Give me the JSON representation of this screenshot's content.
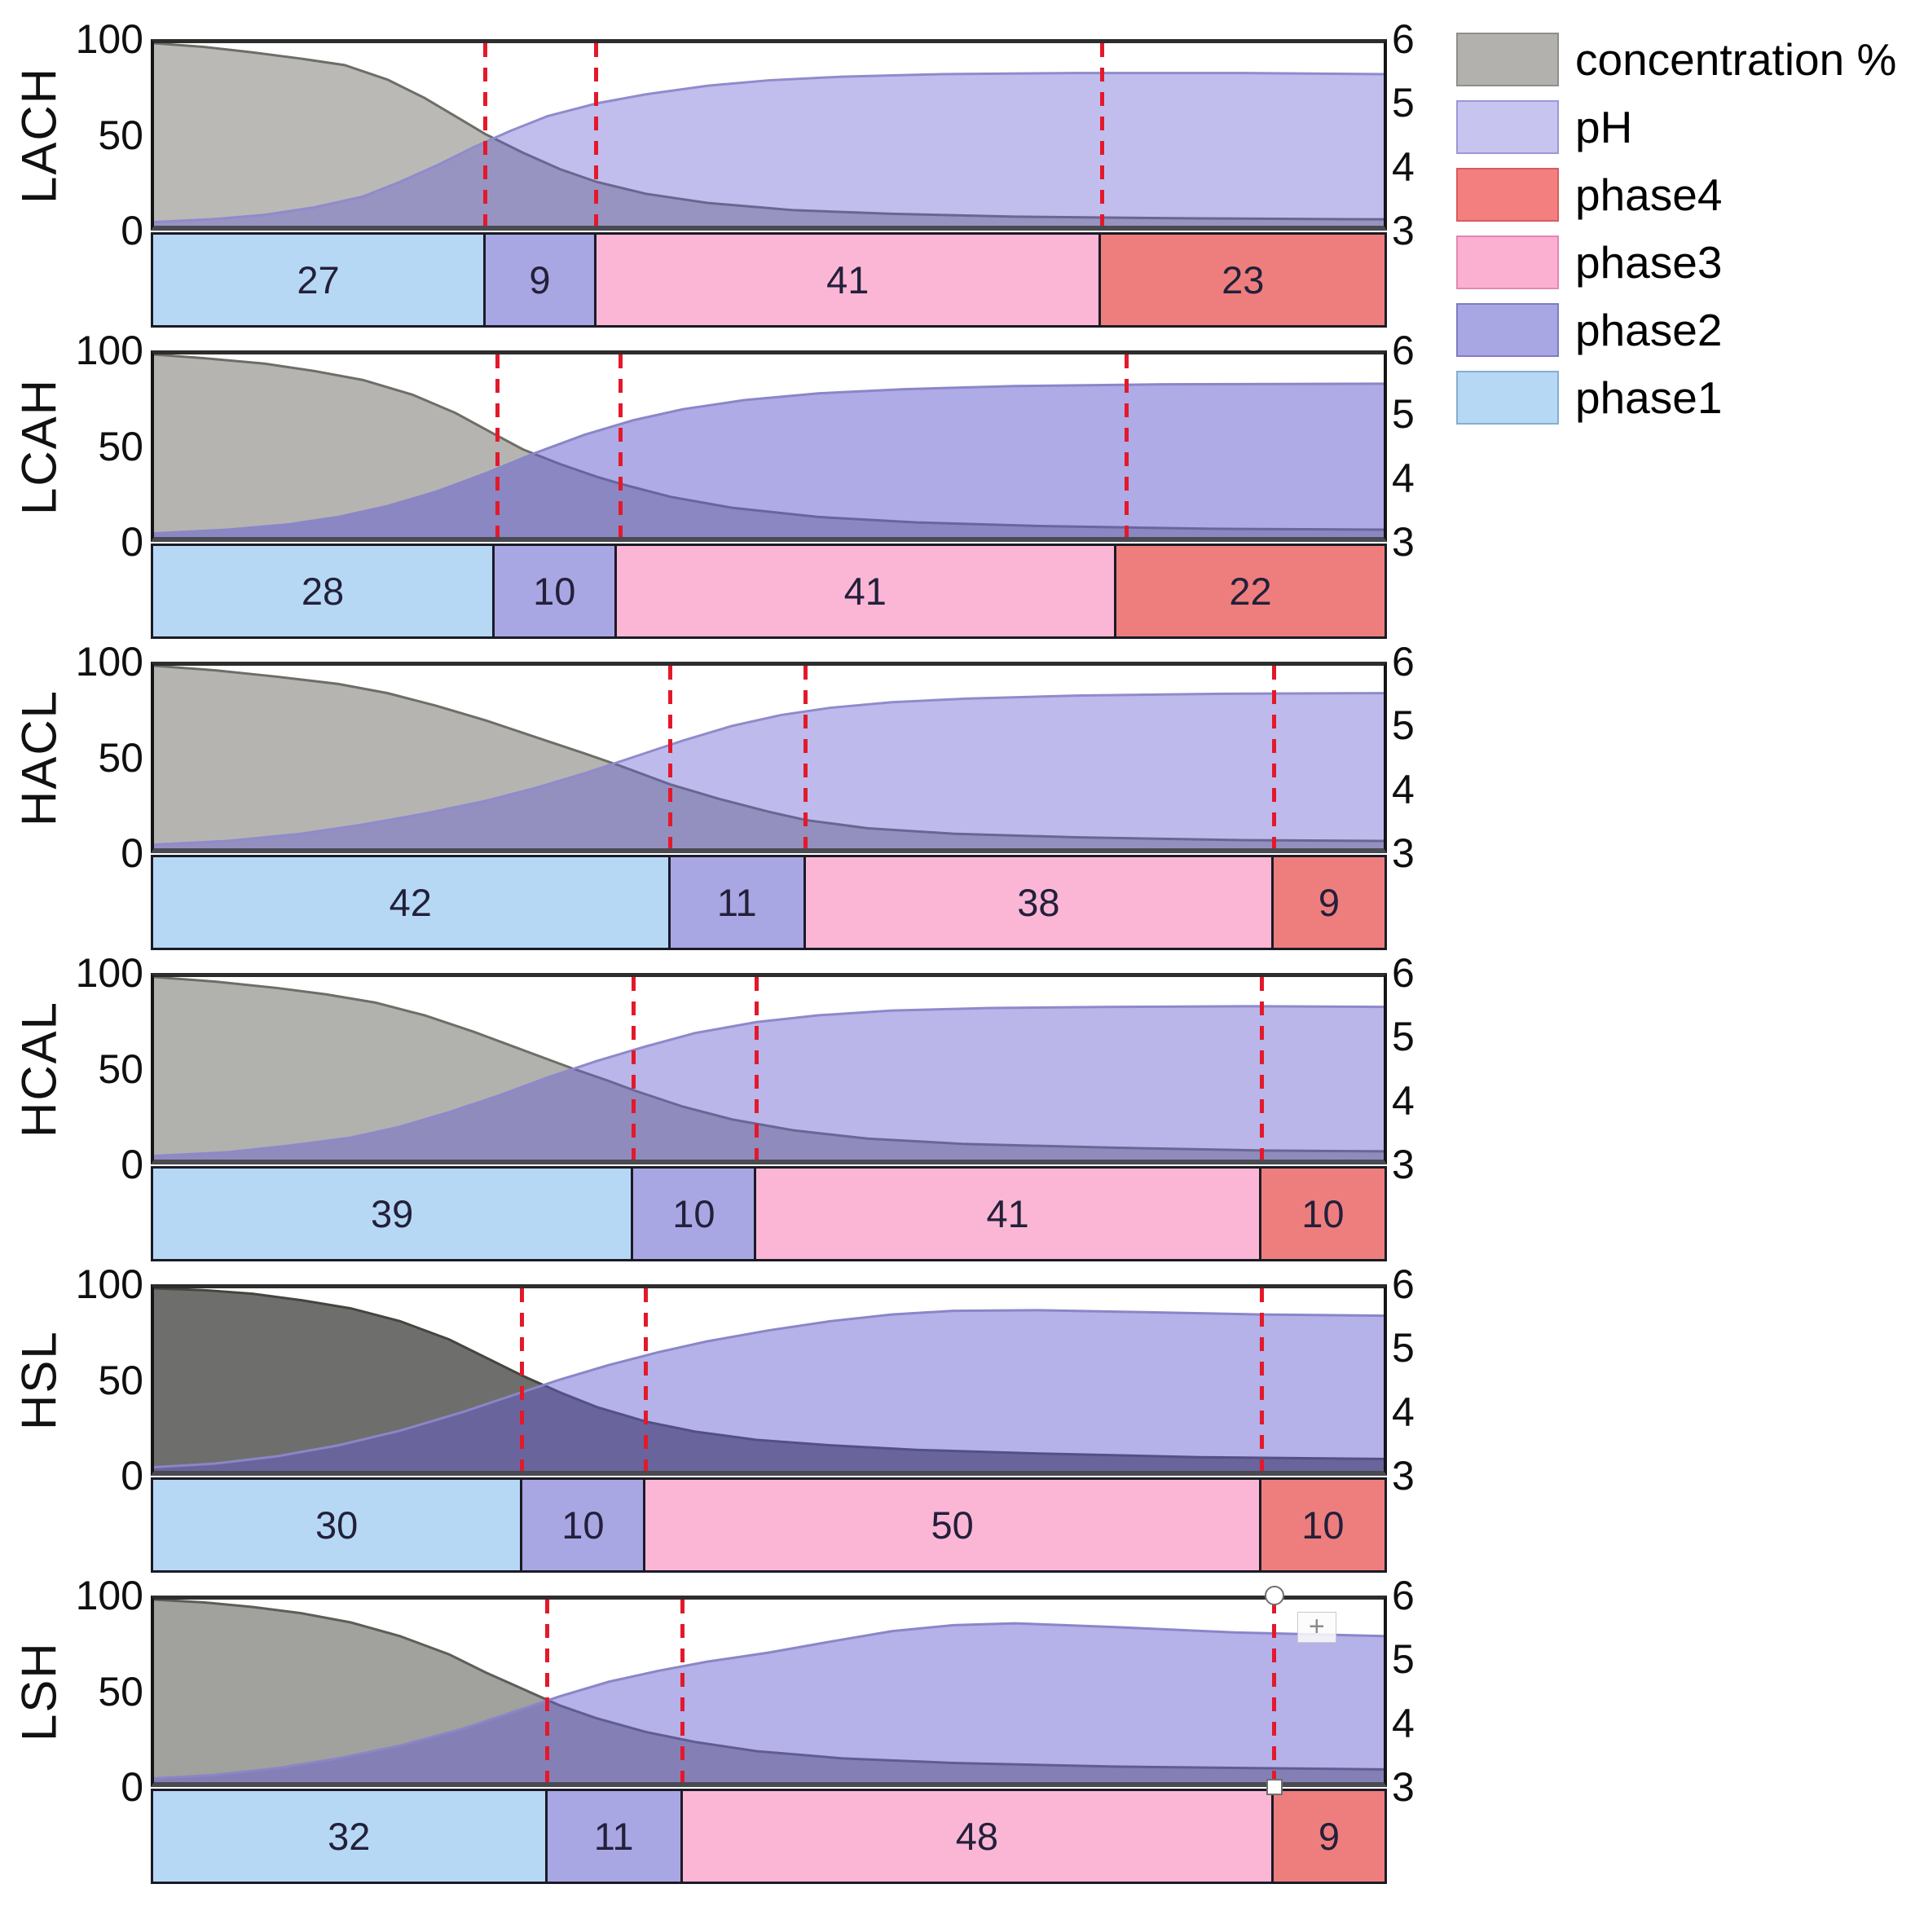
{
  "figure": {
    "background": "#ffffff",
    "description": "Six stacked fermentation panels, each with concentration/pH area chart and phase-duration stacked bar"
  },
  "axes": {
    "left_ticks": [
      "100",
      "50",
      "0"
    ],
    "right_ticks": [
      "6",
      "5",
      "4",
      "3"
    ],
    "left_range": [
      0,
      100
    ],
    "right_range": [
      3,
      6
    ]
  },
  "colors": {
    "phase1": "#b6d8f5",
    "phase2": "#a9a6e4",
    "phase3": "#fbb6d6",
    "phase4": "#ee7e7e",
    "legend_concentration": "#b2b1ad",
    "legend_ph": "#c8c4f0",
    "legend_phase4": "#f3807f",
    "legend_phase3": "#fbb0d2",
    "legend_phase2": "#a9a6e4",
    "legend_phase1": "#b6d8f5",
    "dashed_line": "#e3192b",
    "bar_border": "#1b1b26",
    "axis_border": "#2d2d2d"
  },
  "legend": {
    "items": [
      {
        "label": "concentration %",
        "color": "#b2b1ad",
        "border": "#8f8e8a"
      },
      {
        "label": "pH",
        "color": "#c8c4f0",
        "border": "#9c98d6"
      },
      {
        "label": "phase4",
        "color": "#f3807f",
        "border": "#d85c5e"
      },
      {
        "label": "phase3",
        "color": "#fbb0d2",
        "border": "#e288b4"
      },
      {
        "label": "phase2",
        "color": "#a9a6e4",
        "border": "#7f7cc4"
      },
      {
        "label": "phase1",
        "color": "#b6d8f5",
        "border": "#85aed2"
      }
    ]
  },
  "chart_data": [
    {
      "panel": "LACH",
      "type": "area",
      "series": [
        {
          "name": "concentration %",
          "axis": "left",
          "x": [
            0,
            4,
            8,
            12,
            15.5,
            19,
            22,
            25,
            27,
            30,
            33,
            36,
            40,
            45,
            52,
            60,
            70,
            85,
            100
          ],
          "y": [
            100,
            98,
            95,
            91.5,
            88,
            80,
            70,
            58,
            50,
            40,
            31,
            24,
            17.5,
            12.5,
            8.5,
            6.5,
            5,
            4,
            3.5
          ]
        },
        {
          "name": "pH",
          "axis": "right",
          "x": [
            0,
            5,
            9,
            13,
            17,
            20,
            23,
            26,
            29,
            32,
            36,
            40,
            45,
            50,
            56,
            64,
            75,
            88,
            100
          ],
          "y": [
            3.06,
            3.11,
            3.18,
            3.3,
            3.48,
            3.72,
            3.99,
            4.29,
            4.56,
            4.8,
            5.01,
            5.16,
            5.3,
            5.39,
            5.45,
            5.49,
            5.51,
            5.51,
            5.49
          ]
        }
      ],
      "dashed_lines_x": [
        27,
        36,
        77
      ],
      "phase_bar": {
        "type": "stacked-bar",
        "categories": [
          "phase1",
          "phase2",
          "phase3",
          "phase4"
        ],
        "values": [
          27,
          9,
          41,
          23
        ]
      },
      "style": {
        "conc_fill": "rgba(90,89,82,0.42)",
        "conc_stroke": "#6e6d66",
        "ph_fill": "rgba(101,93,209,0.40)",
        "ph_stroke": "#8f8bcc"
      },
      "selected_line": false
    },
    {
      "panel": "LCAH",
      "type": "area",
      "series": [
        {
          "name": "concentration %",
          "axis": "left",
          "x": [
            0,
            4,
            9,
            13,
            17,
            21,
            24.5,
            27.5,
            30,
            33,
            36,
            38,
            42,
            47,
            54,
            62,
            72,
            86,
            100
          ],
          "y": [
            100,
            98,
            95,
            91,
            86,
            78,
            68,
            57,
            48,
            40,
            33,
            29,
            22,
            16,
            11,
            8,
            6,
            4.5,
            4
          ]
        },
        {
          "name": "pH",
          "axis": "right",
          "x": [
            0,
            6,
            11,
            15,
            19,
            23,
            27,
            31,
            35,
            39,
            43,
            48,
            54,
            61,
            70,
            82,
            100
          ],
          "y": [
            3.06,
            3.12,
            3.21,
            3.33,
            3.51,
            3.75,
            4.05,
            4.38,
            4.68,
            4.92,
            5.1,
            5.25,
            5.36,
            5.43,
            5.48,
            5.51,
            5.52
          ]
        }
      ],
      "dashed_lines_x": [
        28,
        38,
        79
      ],
      "phase_bar": {
        "type": "stacked-bar",
        "categories": [
          "phase1",
          "phase2",
          "phase3",
          "phase4"
        ],
        "values": [
          28,
          10,
          41,
          22
        ]
      },
      "style": {
        "conc_fill": "rgba(90,89,82,0.45)",
        "conc_stroke": "#6e6d66",
        "ph_fill": "rgba(101,93,209,0.52)",
        "ph_stroke": "#8a86c8"
      },
      "selected_line": false
    },
    {
      "panel": "HACL",
      "type": "area",
      "series": [
        {
          "name": "concentration %",
          "axis": "left",
          "x": [
            0,
            5,
            10,
            15,
            19,
            23,
            27,
            31,
            35,
            38,
            42,
            46,
            50,
            53,
            58,
            65,
            75,
            88,
            100
          ],
          "y": [
            100,
            97.5,
            94,
            90,
            85,
            78,
            70,
            61,
            52,
            45,
            35,
            27,
            20,
            15.5,
            11,
            8,
            6,
            4.5,
            4
          ]
        },
        {
          "name": "pH",
          "axis": "right",
          "x": [
            0,
            6,
            12,
            17,
            22,
            27,
            31,
            35,
            39,
            43,
            47,
            51,
            55,
            60,
            66,
            75,
            87,
            100
          ],
          "y": [
            3.06,
            3.12,
            3.24,
            3.39,
            3.57,
            3.78,
            3.99,
            4.23,
            4.5,
            4.77,
            5.01,
            5.19,
            5.31,
            5.4,
            5.46,
            5.51,
            5.54,
            5.55
          ]
        }
      ],
      "dashed_lines_x": [
        42,
        53,
        91
      ],
      "phase_bar": {
        "type": "stacked-bar",
        "categories": [
          "phase1",
          "phase2",
          "phase3",
          "phase4"
        ],
        "values": [
          42,
          11,
          38,
          9
        ]
      },
      "style": {
        "conc_fill": "rgba(90,89,82,0.45)",
        "conc_stroke": "#6e6d66",
        "ph_fill": "rgba(101,93,209,0.42)",
        "ph_stroke": "#8f8bcc"
      },
      "selected_line": false
    },
    {
      "panel": "HCAL",
      "type": "area",
      "series": [
        {
          "name": "concentration %",
          "axis": "left",
          "x": [
            0,
            5,
            10,
            14,
            18,
            22,
            26,
            30,
            34,
            37,
            39,
            43,
            47,
            52,
            58,
            66,
            78,
            90,
            100
          ],
          "y": [
            100,
            97.5,
            94,
            90.5,
            86,
            79,
            70,
            60,
            50,
            43,
            38,
            29,
            22,
            16,
            11.5,
            8.5,
            6.5,
            5,
            4.5
          ]
        },
        {
          "name": "pH",
          "axis": "right",
          "x": [
            0,
            6,
            11,
            16,
            20,
            24,
            28,
            32,
            36,
            40,
            44,
            49,
            54,
            60,
            68,
            78,
            90,
            100
          ],
          "y": [
            3.06,
            3.12,
            3.23,
            3.36,
            3.54,
            3.78,
            4.05,
            4.35,
            4.62,
            4.86,
            5.08,
            5.26,
            5.37,
            5.45,
            5.49,
            5.51,
            5.52,
            5.51
          ]
        }
      ],
      "dashed_lines_x": [
        39,
        49,
        90
      ],
      "phase_bar": {
        "type": "stacked-bar",
        "categories": [
          "phase1",
          "phase2",
          "phase3",
          "phase4"
        ],
        "values": [
          39,
          10,
          41,
          10
        ]
      },
      "style": {
        "conc_fill": "rgba(90,89,82,0.47)",
        "conc_stroke": "#6e6d66",
        "ph_fill": "rgba(101,93,209,0.45)",
        "ph_stroke": "#8d89ca"
      },
      "selected_line": false
    },
    {
      "panel": "HSL",
      "type": "area",
      "series": [
        {
          "name": "concentration %",
          "axis": "left",
          "x": [
            0,
            4,
            8,
            12,
            16,
            20,
            24,
            27,
            30,
            33,
            36,
            40,
            44,
            49,
            55,
            62,
            72,
            85,
            100
          ],
          "y": [
            100,
            99,
            97,
            93.5,
            89,
            82,
            72,
            62,
            52,
            43,
            35,
            27,
            21.5,
            17,
            14,
            11.5,
            9.5,
            7.5,
            6.5
          ]
        },
        {
          "name": "pH",
          "axis": "right",
          "x": [
            0,
            5,
            10,
            15,
            20,
            25,
            29,
            33,
            37,
            41,
            45,
            50,
            55,
            60,
            65,
            72,
            80,
            90,
            100
          ],
          "y": [
            3.06,
            3.12,
            3.24,
            3.42,
            3.66,
            3.96,
            4.23,
            4.5,
            4.74,
            4.95,
            5.13,
            5.31,
            5.46,
            5.57,
            5.63,
            5.64,
            5.61,
            5.57,
            5.55
          ]
        }
      ],
      "dashed_lines_x": [
        30,
        40,
        90
      ],
      "phase_bar": {
        "type": "stacked-bar",
        "categories": [
          "phase1",
          "phase2",
          "phase3",
          "phase4"
        ],
        "values": [
          30,
          10,
          50,
          10
        ]
      },
      "style": {
        "conc_fill": "rgba(42,42,38,0.68)",
        "conc_stroke": "#45453f",
        "ph_fill": "rgba(101,93,209,0.48)",
        "ph_stroke": "#8a86c8"
      },
      "selected_line": false
    },
    {
      "panel": "LSH",
      "type": "area",
      "series": [
        {
          "name": "concentration %",
          "axis": "left",
          "x": [
            0,
            4,
            8,
            12,
            16,
            20,
            24,
            27,
            30,
            33,
            36,
            40,
            44,
            49,
            56,
            65,
            78,
            100
          ],
          "y": [
            100,
            98.5,
            96,
            92.5,
            87.5,
            80,
            70,
            60,
            51,
            42,
            35,
            27.5,
            22,
            17,
            13,
            10.5,
            8.5,
            7
          ]
        },
        {
          "name": "pH",
          "axis": "right",
          "x": [
            0,
            5,
            10,
            15,
            20,
            25,
            29,
            33,
            37,
            41,
            45,
            50,
            55,
            60,
            65,
            70,
            78,
            88,
            100
          ],
          "y": [
            3.06,
            3.12,
            3.23,
            3.39,
            3.6,
            3.87,
            4.14,
            4.41,
            4.65,
            4.83,
            4.98,
            5.13,
            5.31,
            5.48,
            5.58,
            5.61,
            5.55,
            5.46,
            5.4
          ]
        }
      ],
      "dashed_lines_x": [
        32,
        43,
        91
      ],
      "phase_bar": {
        "type": "stacked-bar",
        "categories": [
          "phase1",
          "phase2",
          "phase3",
          "phase4"
        ],
        "values": [
          32,
          11,
          48,
          9
        ]
      },
      "style": {
        "conc_fill": "rgba(75,74,68,0.52)",
        "conc_stroke": "#5e5d57",
        "ph_fill": "rgba(101,93,209,0.48)",
        "ph_stroke": "#8a86c8"
      },
      "selected_line": true
    }
  ],
  "selection_artifacts": {
    "plus_glyph": "+",
    "note": "third dashed line of LSH is selected: circle handle at top, square handle at bottom, plus cursor nearby"
  }
}
